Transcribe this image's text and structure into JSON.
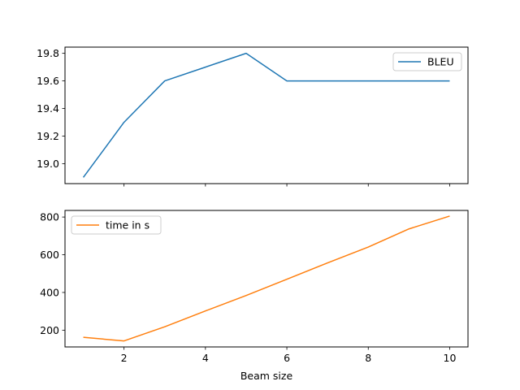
{
  "chart_data": [
    {
      "type": "line",
      "xlabel": "",
      "ylabel": "",
      "x": [
        1,
        2,
        3,
        4,
        5,
        6,
        7,
        8,
        9,
        10
      ],
      "xlim": [
        0.55,
        10.45
      ],
      "ylim": [
        18.855,
        19.845
      ],
      "xticks": [
        2,
        4,
        6,
        8,
        10
      ],
      "yticks": [
        19.0,
        19.2,
        19.4,
        19.6,
        19.8
      ],
      "ytick_labels": [
        "19.0",
        "19.2",
        "19.4",
        "19.6",
        "19.8"
      ],
      "legend": "upper right",
      "grid": false,
      "series": [
        {
          "name": "BLEU",
          "color": "#1f77b4",
          "values": [
            18.9,
            19.3,
            19.6,
            19.7,
            19.8,
            19.6,
            19.6,
            19.6,
            19.6,
            19.6
          ]
        }
      ]
    },
    {
      "type": "line",
      "xlabel": "Beam size",
      "ylabel": "",
      "x": [
        1,
        2,
        3,
        4,
        5,
        6,
        7,
        8,
        9,
        10
      ],
      "xlim": [
        0.55,
        10.45
      ],
      "ylim": [
        111,
        835
      ],
      "xticks": [
        2,
        4,
        6,
        8,
        10
      ],
      "xtick_labels": [
        "2",
        "4",
        "6",
        "8",
        "10"
      ],
      "yticks": [
        200,
        400,
        600,
        800
      ],
      "ytick_labels": [
        "200",
        "400",
        "600",
        "800"
      ],
      "legend": "upper left",
      "grid": false,
      "series": [
        {
          "name": "time in s",
          "color": "#ff7f0e",
          "values": [
            162,
            143,
            218,
            302,
            384,
            470,
            557,
            641,
            737,
            805
          ]
        }
      ]
    }
  ]
}
